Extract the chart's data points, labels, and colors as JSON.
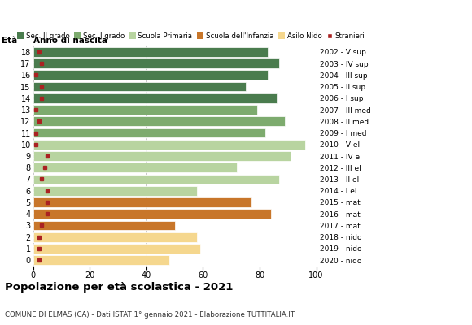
{
  "ages": [
    18,
    17,
    16,
    15,
    14,
    13,
    12,
    11,
    10,
    9,
    8,
    7,
    6,
    5,
    4,
    3,
    2,
    1,
    0
  ],
  "years": [
    "2002 - V sup",
    "2003 - IV sup",
    "2004 - III sup",
    "2005 - II sup",
    "2006 - I sup",
    "2007 - III med",
    "2008 - II med",
    "2009 - I med",
    "2010 - V el",
    "2011 - IV el",
    "2012 - III el",
    "2013 - II el",
    "2014 - I el",
    "2015 - mat",
    "2016 - mat",
    "2017 - mat",
    "2018 - nido",
    "2019 - nido",
    "2020 - nido"
  ],
  "bar_values": [
    83,
    87,
    83,
    75,
    86,
    79,
    89,
    82,
    96,
    91,
    72,
    87,
    58,
    77,
    84,
    50,
    58,
    59,
    48
  ],
  "stranieri": [
    2,
    3,
    1,
    3,
    3,
    1,
    2,
    1,
    1,
    5,
    4,
    3,
    5,
    5,
    5,
    3,
    2,
    2,
    2
  ],
  "bar_colors": [
    "#4a7c4e",
    "#4a7c4e",
    "#4a7c4e",
    "#4a7c4e",
    "#4a7c4e",
    "#7dab6e",
    "#7dab6e",
    "#7dab6e",
    "#b8d4a0",
    "#b8d4a0",
    "#b8d4a0",
    "#b8d4a0",
    "#b8d4a0",
    "#c8762a",
    "#c8762a",
    "#c8762a",
    "#f5d78e",
    "#f5d78e",
    "#f5d78e"
  ],
  "legend_labels": [
    "Sec. II grado",
    "Sec. I grado",
    "Scuola Primaria",
    "Scuola dell'Infanzia",
    "Asilo Nido",
    "Stranieri"
  ],
  "legend_colors": [
    "#4a7c4e",
    "#7dab6e",
    "#b8d4a0",
    "#c8762a",
    "#f5d78e",
    "#aa2222"
  ],
  "title": "Popolazione per età scolastica - 2021",
  "subtitle": "COMUNE DI ELMAS (CA) - Dati ISTAT 1° gennaio 2021 - Elaborazione TUTTITALIA.IT",
  "eta_label": "Età",
  "anno_label": "Anno di nascita",
  "xlim": [
    0,
    100
  ],
  "xticks": [
    0,
    20,
    40,
    60,
    80,
    100
  ],
  "grid_color": "#bbbbbb",
  "bg_color": "#ffffff",
  "stranieri_color": "#aa2222",
  "bar_height": 0.82
}
